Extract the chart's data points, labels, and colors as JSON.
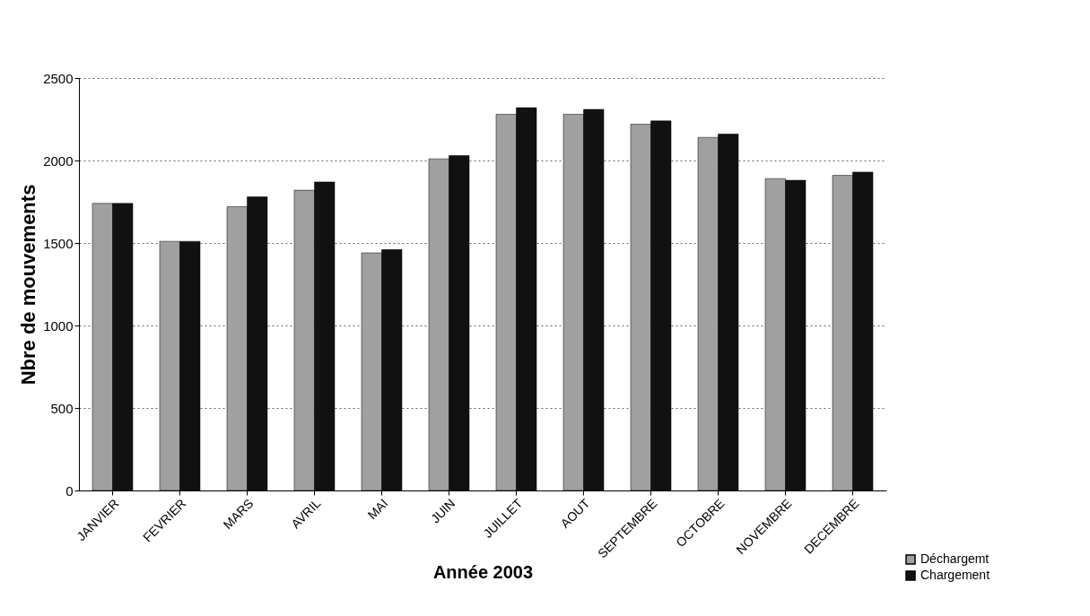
{
  "chart_data": {
    "type": "bar",
    "xlabel": "Année 2003",
    "ylabel": "Nbre de mouvements",
    "categories": [
      "JANVIER",
      "FEVRIER",
      "MARS",
      "AVRIL",
      "MAI",
      "JUIN",
      "JUILLET",
      "AOUT",
      "SEPTEMBRE",
      "OCTOBRE",
      "NOVEMBRE",
      "DECEMBRE"
    ],
    "series": [
      {
        "name": "Déchargemt",
        "color": "#a0a0a0",
        "values": [
          1740,
          1510,
          1720,
          1820,
          1440,
          2010,
          2280,
          2280,
          2220,
          2140,
          1890,
          1910
        ]
      },
      {
        "name": "Chargement",
        "color": "#111111",
        "values": [
          1740,
          1510,
          1780,
          1870,
          1460,
          2030,
          2320,
          2310,
          2240,
          2160,
          1880,
          1930
        ]
      }
    ],
    "ylim": [
      0,
      2500
    ],
    "yticks": [
      0,
      500,
      1000,
      1500,
      2000,
      2500
    ],
    "grid": "y",
    "legend": "bottom right"
  }
}
